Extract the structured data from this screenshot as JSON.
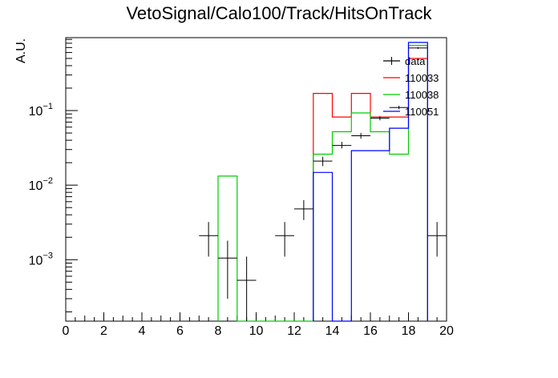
{
  "chart_data": {
    "type": "line",
    "title": "VetoSignal/Calo100/Track/HitsOnTrack",
    "xlabel": "",
    "ylabel": "A.U.",
    "xlim": [
      0,
      20
    ],
    "ylim": [
      0.00015,
      0.95
    ],
    "yscale": "log",
    "x_ticks": [
      0,
      2,
      4,
      6,
      8,
      10,
      12,
      14,
      16,
      18,
      20
    ],
    "y_ticks": [
      {
        "value": 0.1,
        "base": "10",
        "exp": "−1"
      },
      {
        "value": 0.01,
        "base": "10",
        "exp": "−2"
      },
      {
        "value": 0.001,
        "base": "10",
        "exp": "−3"
      }
    ],
    "legend_position": "top-right",
    "colors": {
      "data": "#000000",
      "110033": "#ff0000",
      "110038": "#00cc00",
      "110051": "#0000ff"
    },
    "data": {
      "name": "data",
      "points": [
        {
          "x": 7.5,
          "y": 0.0021,
          "ylo": 0.0011,
          "yhi": 0.0032
        },
        {
          "x": 8.5,
          "y": 0.00105,
          "ylo": 0.0003,
          "yhi": 0.0018
        },
        {
          "x": 9.5,
          "y": 0.00053,
          "ylo": 0.00015,
          "yhi": 0.0011
        },
        {
          "x": 11.5,
          "y": 0.0021,
          "ylo": 0.0011,
          "yhi": 0.0032
        },
        {
          "x": 12.5,
          "y": 0.0048,
          "ylo": 0.0034,
          "yhi": 0.0063
        },
        {
          "x": 13.5,
          "y": 0.021,
          "ylo": 0.018,
          "yhi": 0.024
        },
        {
          "x": 14.5,
          "y": 0.034,
          "ylo": 0.031,
          "yhi": 0.038
        },
        {
          "x": 15.5,
          "y": 0.046,
          "ylo": 0.042,
          "yhi": 0.05
        },
        {
          "x": 16.5,
          "y": 0.079,
          "ylo": 0.074,
          "yhi": 0.084
        },
        {
          "x": 17.5,
          "y": 0.11,
          "ylo": 0.104,
          "yhi": 0.116
        },
        {
          "x": 18.5,
          "y": 0.69,
          "ylo": 0.67,
          "yhi": 0.71
        },
        {
          "x": 19.5,
          "y": 0.0021,
          "ylo": 0.0011,
          "yhi": 0.0032
        }
      ]
    },
    "series": [
      {
        "name": "110033",
        "bin_edges": [
          13,
          14,
          15,
          16,
          17,
          18,
          19
        ],
        "values": [
          0.17,
          0.082,
          0.17,
          0.082,
          0.082,
          0.5
        ]
      },
      {
        "name": "110038",
        "bin_edges": [
          8,
          9,
          13,
          14,
          15,
          16,
          17,
          18,
          19
        ],
        "values": [
          0.0132,
          0,
          0.026,
          0.052,
          0.093,
          0.052,
          0.026,
          0.75
        ]
      },
      {
        "name": "110051",
        "bin_edges": [
          13,
          14,
          15,
          16,
          17,
          18,
          19
        ],
        "values": [
          0.0148,
          0,
          0.029,
          0.029,
          0.058,
          0.82
        ]
      }
    ]
  }
}
